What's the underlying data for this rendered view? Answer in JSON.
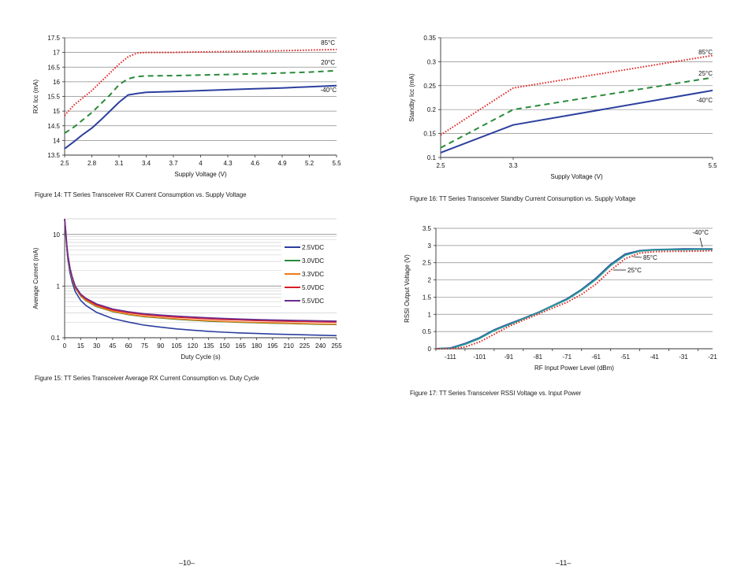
{
  "pages": [
    {
      "number": "–10–"
    },
    {
      "number": "–11–"
    }
  ],
  "captions": {
    "fig14": "Figure 14: TT Series Transceiver RX Current Consumption vs. Supply Voltage",
    "fig15": "Figure 15: TT Series Transceiver Average RX Current Consumption vs. Duty Cycle",
    "fig16": "Figure 16: TT Series Transceiver Standby Current Consumption vs. Supply Voltage",
    "fig17": "Figure 17: TT Series Transceiver RSSI Voltage vs. Input Power"
  },
  "chart_data": [
    {
      "id": "fig14",
      "type": "line",
      "title": "",
      "xlabel": "Supply Voltage (V)",
      "ylabel": "RX Icc (mA)",
      "xlim": [
        2.5,
        5.5
      ],
      "ylim": [
        13.5,
        17.5
      ],
      "xticks": [
        "2.5",
        "2.8",
        "3.1",
        "3.4",
        "3.7",
        "4",
        "4.3",
        "4.6",
        "4.9",
        "5.2",
        "5.5"
      ],
      "yticks": [
        "13.5",
        "14",
        "14.5",
        "15",
        "15.5",
        "16",
        "16.5",
        "17",
        "17.5"
      ],
      "grid": "horizontal",
      "series": [
        {
          "name": "85°C",
          "color": "#e02020",
          "style": "dotted",
          "x": [
            2.5,
            2.6,
            2.7,
            2.8,
            2.9,
            3.0,
            3.1,
            3.2,
            3.3,
            3.4,
            3.7,
            4.0,
            4.3,
            4.6,
            4.9,
            5.2,
            5.5
          ],
          "y": [
            14.85,
            15.2,
            15.45,
            15.7,
            16.0,
            16.3,
            16.6,
            16.85,
            16.98,
            17.0,
            17.0,
            17.02,
            17.03,
            17.04,
            17.06,
            17.08,
            17.1
          ]
        },
        {
          "name": "20°C",
          "color": "#2a8a3a",
          "style": "dashed",
          "x": [
            2.5,
            2.6,
            2.7,
            2.8,
            2.9,
            3.0,
            3.1,
            3.2,
            3.3,
            3.4,
            3.7,
            4.0,
            4.3,
            4.6,
            4.9,
            5.2,
            5.5
          ],
          "y": [
            14.25,
            14.45,
            14.7,
            14.95,
            15.25,
            15.55,
            15.9,
            16.1,
            16.18,
            16.2,
            16.21,
            16.23,
            16.25,
            16.27,
            16.3,
            16.33,
            16.38
          ]
        },
        {
          "name": "-40°C",
          "color": "#2c3f9e",
          "style": "solid",
          "x": [
            2.5,
            2.6,
            2.7,
            2.8,
            2.9,
            3.0,
            3.1,
            3.2,
            3.3,
            3.4,
            3.7,
            4.0,
            4.3,
            4.6,
            4.9,
            5.2,
            5.5
          ],
          "y": [
            13.72,
            13.95,
            14.2,
            14.42,
            14.7,
            15.0,
            15.3,
            15.55,
            15.6,
            15.64,
            15.67,
            15.7,
            15.73,
            15.76,
            15.79,
            15.83,
            15.87
          ]
        }
      ]
    },
    {
      "id": "fig15",
      "type": "line",
      "title": "",
      "xlabel": "Duty Cycle (s)",
      "ylabel": "Average Current (mA)",
      "xlim": [
        0,
        255
      ],
      "ylim": [
        0.1,
        20
      ],
      "yscale": "log",
      "xticks": [
        "0",
        "15",
        "30",
        "45",
        "60",
        "75",
        "90",
        "105",
        "120",
        "135",
        "150",
        "165",
        "180",
        "195",
        "210",
        "225",
        "240",
        "255"
      ],
      "yticks": [
        "0.1",
        "1",
        "10"
      ],
      "grid": "horizontal-minor",
      "legend": "right",
      "series": [
        {
          "name": "2.5VDC",
          "color": "#2c3f9e",
          "x": [
            0,
            1,
            2,
            3,
            5,
            7,
            10,
            15,
            20,
            30,
            45,
            60,
            75,
            90,
            105,
            120,
            135,
            150,
            165,
            180,
            195,
            210,
            225,
            240,
            255
          ],
          "y": [
            20,
            10,
            5.5,
            3.3,
            1.8,
            1.2,
            0.78,
            0.53,
            0.42,
            0.31,
            0.235,
            0.2,
            0.175,
            0.16,
            0.148,
            0.14,
            0.133,
            0.128,
            0.124,
            0.121,
            0.118,
            0.116,
            0.114,
            0.112,
            0.11
          ]
        },
        {
          "name": "3.0VDC",
          "color": "#2a8a3a",
          "x": [
            0,
            1,
            2,
            3,
            5,
            7,
            10,
            15,
            20,
            30,
            45,
            60,
            75,
            90,
            105,
            120,
            135,
            150,
            165,
            180,
            195,
            210,
            225,
            240,
            255
          ],
          "y": [
            20,
            11,
            6.0,
            3.7,
            2.1,
            1.4,
            0.92,
            0.64,
            0.52,
            0.4,
            0.32,
            0.28,
            0.255,
            0.24,
            0.227,
            0.218,
            0.21,
            0.204,
            0.199,
            0.195,
            0.191,
            0.188,
            0.185,
            0.182,
            0.18
          ]
        },
        {
          "name": "3.3VDC",
          "color": "#f07a1a",
          "x": [
            0,
            1,
            2,
            3,
            5,
            7,
            10,
            15,
            20,
            30,
            45,
            60,
            75,
            90,
            105,
            120,
            135,
            150,
            165,
            180,
            195,
            210,
            225,
            240,
            255
          ],
          "y": [
            20,
            11,
            6.0,
            3.7,
            2.1,
            1.4,
            0.93,
            0.65,
            0.53,
            0.41,
            0.325,
            0.285,
            0.26,
            0.245,
            0.232,
            0.222,
            0.214,
            0.207,
            0.202,
            0.198,
            0.194,
            0.191,
            0.188,
            0.185,
            0.183
          ]
        },
        {
          "name": "5.0VDC",
          "color": "#d81f26",
          "x": [
            0,
            1,
            2,
            3,
            5,
            7,
            10,
            15,
            20,
            30,
            45,
            60,
            75,
            90,
            105,
            120,
            135,
            150,
            165,
            180,
            195,
            210,
            225,
            240,
            255
          ],
          "y": [
            20,
            11.5,
            6.3,
            3.9,
            2.2,
            1.5,
            0.98,
            0.68,
            0.56,
            0.43,
            0.345,
            0.305,
            0.28,
            0.263,
            0.25,
            0.24,
            0.232,
            0.225,
            0.22,
            0.215,
            0.211,
            0.208,
            0.205,
            0.202,
            0.2
          ]
        },
        {
          "name": "5.5VDC",
          "color": "#6a2c91",
          "x": [
            0,
            1,
            2,
            3,
            5,
            7,
            10,
            15,
            20,
            30,
            45,
            60,
            75,
            90,
            105,
            120,
            135,
            150,
            165,
            180,
            195,
            210,
            225,
            240,
            255
          ],
          "y": [
            20,
            11.5,
            6.4,
            4.0,
            2.25,
            1.52,
            1.0,
            0.7,
            0.58,
            0.45,
            0.36,
            0.318,
            0.292,
            0.275,
            0.262,
            0.252,
            0.243,
            0.236,
            0.23,
            0.225,
            0.221,
            0.218,
            0.215,
            0.212,
            0.21
          ]
        }
      ]
    },
    {
      "id": "fig16",
      "type": "line",
      "title": "",
      "xlabel": "Supply Voltage (V)",
      "ylabel": "Standby Icc (mA)",
      "xlim": [
        2.5,
        5.5
      ],
      "ylim": [
        0.1,
        0.35
      ],
      "xticks": [
        "2.5",
        "3.3",
        "5.5"
      ],
      "yticks": [
        "0.1",
        "0.15",
        "0.2",
        "0.25",
        "0.3",
        "0.35"
      ],
      "grid": "horizontal",
      "series": [
        {
          "name": "85°C",
          "color": "#e02020",
          "style": "dotted",
          "x": [
            2.5,
            3.3,
            5.5
          ],
          "y": [
            0.147,
            0.245,
            0.313
          ]
        },
        {
          "name": "25°C",
          "color": "#2a8a3a",
          "style": "dashed",
          "x": [
            2.5,
            3.3,
            5.5
          ],
          "y": [
            0.12,
            0.2,
            0.267
          ]
        },
        {
          "name": "-40°C",
          "color": "#2c3f9e",
          "style": "solid",
          "x": [
            2.5,
            3.3,
            5.5
          ],
          "y": [
            0.11,
            0.168,
            0.24
          ]
        }
      ]
    },
    {
      "id": "fig17",
      "type": "line",
      "title": "",
      "xlabel": "RF Input Power Level (dBm)",
      "ylabel": "RSSI Output Voltage (V)",
      "xlim": [
        -116,
        -21
      ],
      "ylim": [
        0,
        3.5
      ],
      "xticks": [
        "-111",
        "-101",
        "-91",
        "-81",
        "-71",
        "-61",
        "-51",
        "-41",
        "-31",
        "-21"
      ],
      "xtick_values": [
        -111,
        -101,
        -91,
        -81,
        -71,
        -61,
        -51,
        -41,
        -31,
        -21
      ],
      "yticks": [
        "0",
        "0.5",
        "1",
        "1.5",
        "2",
        "2.5",
        "3",
        "3.5"
      ],
      "grid": "horizontal",
      "series": [
        {
          "name": "-40°C",
          "color": "#2c3f9e",
          "style": "solid",
          "x": [
            -116,
            -111,
            -106,
            -101,
            -96,
            -91,
            -86,
            -81,
            -76,
            -71,
            -66,
            -61,
            -56,
            -51,
            -46,
            -41,
            -36,
            -31,
            -26,
            -21
          ],
          "y": [
            0.0,
            0.02,
            0.15,
            0.32,
            0.55,
            0.72,
            0.88,
            1.05,
            1.25,
            1.45,
            1.72,
            2.05,
            2.45,
            2.75,
            2.85,
            2.88,
            2.89,
            2.9,
            2.9,
            2.9
          ]
        },
        {
          "name": "85°C",
          "color": "#2a9a9a",
          "style": "solid",
          "x": [
            -116,
            -111,
            -106,
            -101,
            -96,
            -91,
            -86,
            -81,
            -76,
            -71,
            -66,
            -61,
            -56,
            -51,
            -46,
            -41,
            -36,
            -31,
            -26,
            -21
          ],
          "y": [
            0.0,
            0.01,
            0.13,
            0.3,
            0.53,
            0.7,
            0.87,
            1.04,
            1.24,
            1.43,
            1.7,
            2.02,
            2.42,
            2.72,
            2.84,
            2.87,
            2.88,
            2.88,
            2.89,
            2.89
          ]
        },
        {
          "name": "25°C",
          "color": "#e02020",
          "style": "dotted",
          "x": [
            -116,
            -111,
            -106,
            -101,
            -96,
            -91,
            -86,
            -81,
            -76,
            -71,
            -66,
            -61,
            -56,
            -51,
            -46,
            -41,
            -36,
            -31,
            -26,
            -21
          ],
          "y": [
            0.0,
            0.0,
            0.05,
            0.2,
            0.42,
            0.65,
            0.83,
            1.0,
            1.18,
            1.35,
            1.58,
            1.88,
            2.28,
            2.62,
            2.78,
            2.82,
            2.83,
            2.83,
            2.84,
            2.85
          ]
        }
      ]
    }
  ]
}
